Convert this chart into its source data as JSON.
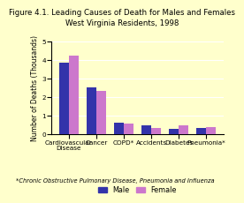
{
  "title_line1": "Figure 4.1. Leading Causes of Death for Males and Females",
  "title_line2": "West Virginia Residents, 1998",
  "categories": [
    "Cardiovascular\nDisease",
    "Cancer",
    "COPD*",
    "Accidents",
    "Diabetes",
    "Pneumonia*"
  ],
  "male_values": [
    3.85,
    2.55,
    0.63,
    0.5,
    0.32,
    0.33
  ],
  "female_values": [
    4.25,
    2.33,
    0.58,
    0.33,
    0.48,
    0.38
  ],
  "male_color": "#3333aa",
  "female_color": "#cc77cc",
  "ylabel": "Number of Deaths (Thousands)",
  "ylim": [
    0,
    5
  ],
  "yticks": [
    0,
    1,
    2,
    3,
    4,
    5
  ],
  "background_color": "#ffffcc",
  "footnote": "*Chronic Obstructive Pulmonary Disease, Pneumonia and Influenza",
  "title_fontsize": 6.2,
  "axis_label_fontsize": 5.5,
  "tick_fontsize": 5.2,
  "legend_fontsize": 5.8,
  "footnote_fontsize": 4.8
}
